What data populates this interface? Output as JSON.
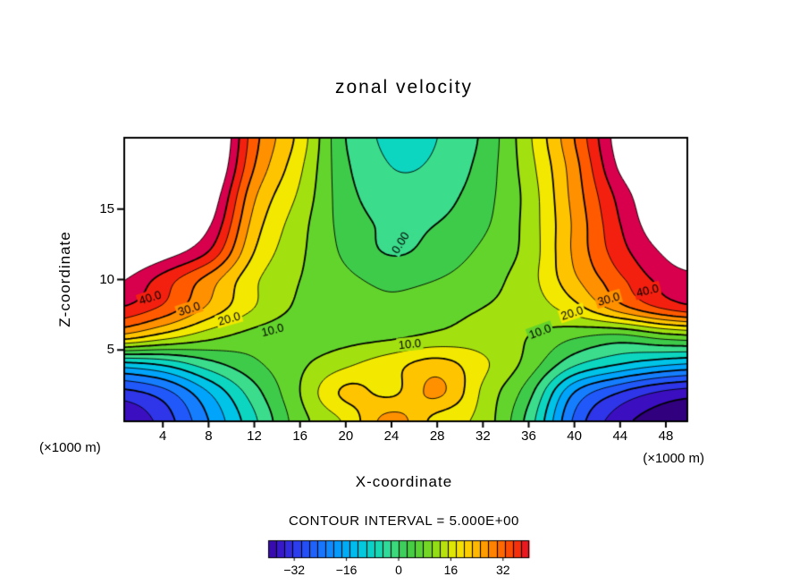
{
  "title": "zonal velocity",
  "caption": "CONTOUR INTERVAL = 5.000E+00",
  "axis": {
    "x_label": "X-coordinate",
    "z_label": "Z-coordinate",
    "left_unit": "(×1000 m)",
    "right_unit": "(×1000 m)"
  },
  "chart_data": {
    "type": "heatmap",
    "subtype": "filled-contour-cross-section",
    "title": "zonal velocity",
    "xlabel": "X-coordinate",
    "ylabel": "Z-coordinate",
    "units_note": "(×1000 m)",
    "contour_interval": 5.0,
    "x_range": [
      0.7,
      49.8
    ],
    "z_range": [
      0,
      20
    ],
    "x_ticks": [
      4,
      8,
      12,
      16,
      20,
      24,
      28,
      32,
      36,
      40,
      44,
      48
    ],
    "z_ticks": [
      5,
      10,
      15
    ],
    "grid_x": [
      0,
      4,
      8,
      12,
      16,
      20,
      24,
      28,
      32,
      36,
      40,
      44,
      48,
      52
    ],
    "grid_z": [
      0,
      2,
      4,
      6,
      8,
      10,
      12,
      14,
      16,
      18,
      20
    ],
    "values": [
      [
        -40,
        -33,
        -20,
        -6,
        8,
        16,
        27,
        18,
        13,
        -2,
        -26,
        -38,
        -43,
        -45
      ],
      [
        -32,
        -27,
        -15,
        -2,
        10,
        21,
        19,
        26,
        14,
        2,
        -20,
        -30,
        -36,
        -38
      ],
      [
        -12,
        -9,
        -2,
        4,
        9,
        14,
        18,
        22,
        16,
        8,
        -4,
        -10,
        -14,
        -16
      ],
      [
        24,
        18,
        12,
        8,
        7,
        8,
        9,
        11,
        12,
        10,
        6,
        4,
        8,
        10
      ],
      [
        40,
        34,
        24,
        15,
        9,
        7,
        6,
        8,
        10,
        12,
        18,
        28,
        36,
        40
      ],
      [
        46,
        38,
        28,
        16,
        10,
        6,
        4,
        5,
        8,
        13,
        24,
        34,
        42,
        44
      ],
      [
        52,
        48,
        40,
        20,
        11,
        4,
        -0.5,
        2,
        6,
        12,
        26,
        38,
        46,
        50
      ],
      [
        55,
        51,
        46,
        23,
        12,
        3,
        -1,
        0,
        4,
        12,
        26,
        40,
        50,
        54
      ],
      [
        58,
        54,
        50,
        26,
        14,
        2,
        -3,
        -2,
        3,
        12,
        27,
        42,
        52,
        57
      ],
      [
        60,
        56,
        54,
        30,
        16,
        1,
        -5,
        -4,
        2,
        13,
        28,
        46,
        54,
        60
      ],
      [
        62,
        58,
        56,
        32,
        18,
        0,
        -6,
        -5,
        1,
        14,
        30,
        48,
        56,
        62
      ]
    ],
    "contour_labels": [
      {
        "text": "40.0",
        "x": 2.9,
        "z": 8.7,
        "rot": -18
      },
      {
        "text": "30.0",
        "x": 6.3,
        "z": 7.9,
        "rot": -18
      },
      {
        "text": "20.0",
        "x": 9.8,
        "z": 7.2,
        "rot": -16
      },
      {
        "text": "10.0",
        "x": 13.6,
        "z": 6.4,
        "rot": -14
      },
      {
        "text": "10.0",
        "x": 25.6,
        "z": 5.4,
        "rot": -6
      },
      {
        "text": "0.00",
        "x": 24.8,
        "z": 12.6,
        "rot": -58
      },
      {
        "text": "10.0",
        "x": 37.0,
        "z": 6.3,
        "rot": -20
      },
      {
        "text": "20.0",
        "x": 39.8,
        "z": 7.6,
        "rot": -18
      },
      {
        "text": "30.0",
        "x": 43.0,
        "z": 8.6,
        "rot": -16
      },
      {
        "text": "40.0",
        "x": 46.4,
        "z": 9.2,
        "rot": -14
      }
    ],
    "over_threshold": 45,
    "over_color": "#ffffff",
    "band_colors": {
      "-45": "#30007e",
      "-40": "#3b0fc0",
      "-35": "#2f35e8",
      "-30": "#2158fa",
      "-25": "#157eff",
      "-20": "#00a4fb",
      "-15": "#00c3e8",
      "-10": "#0cd6c0",
      "-5": "#3bdc8c",
      "0": "#3ecb4a",
      "5": "#63d42c",
      "10": "#a3e010",
      "15": "#f2e800",
      "20": "#ffc400",
      "25": "#ff9000",
      "30": "#ff5a00",
      "35": "#f32010",
      "40": "#d8004c"
    },
    "colorbar": {
      "min": -40,
      "max": 40,
      "cell_width": 2.5,
      "ticks": [
        -32,
        -16,
        0,
        16,
        32
      ],
      "tick_labels": [
        "−32",
        "−16",
        "0",
        "16",
        "32"
      ]
    }
  }
}
